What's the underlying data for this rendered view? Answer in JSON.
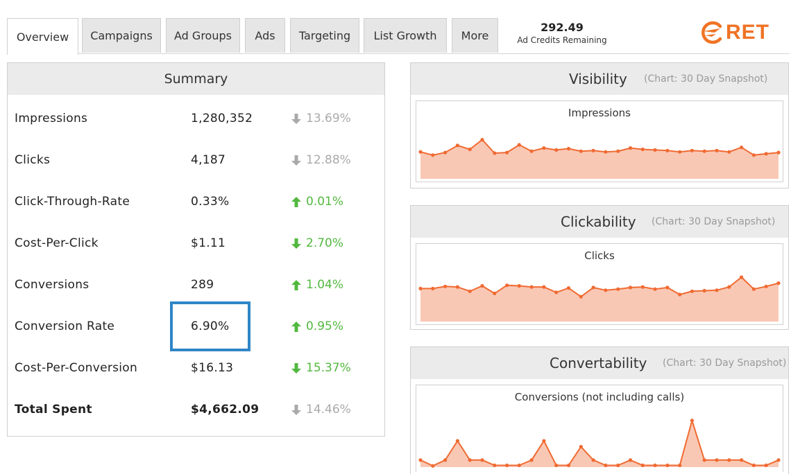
{
  "tabs": [
    {
      "label": "Overview",
      "active": true
    },
    {
      "label": "Campaigns"
    },
    {
      "label": "Ad Groups"
    },
    {
      "label": "Ads"
    },
    {
      "label": "Targeting"
    },
    {
      "label": "List Growth"
    },
    {
      "label": "More"
    }
  ],
  "credits": {
    "amount": "292.49",
    "label": "Ad Credits Remaining"
  },
  "logo": {
    "text": "RET",
    "color": "#f07325"
  },
  "summary": {
    "title": "Summary",
    "rows": [
      {
        "label": "Impressions",
        "value": "1,280,352",
        "change": "13.69%",
        "direction": "down",
        "color": "grey"
      },
      {
        "label": "Clicks",
        "value": "4,187",
        "change": "12.88%",
        "direction": "down",
        "color": "grey"
      },
      {
        "label": "Click-Through-Rate",
        "value": "0.33%",
        "change": "0.01%",
        "direction": "up",
        "color": "green"
      },
      {
        "label": "Cost-Per-Click",
        "value": "$1.11",
        "change": "2.70%",
        "direction": "down",
        "color": "green"
      },
      {
        "label": "Conversions",
        "value": "289",
        "change": "1.04%",
        "direction": "up",
        "color": "green"
      },
      {
        "label": "Conversion Rate",
        "value": "6.90%",
        "change": "0.95%",
        "direction": "up",
        "color": "green",
        "highlighted": true
      },
      {
        "label": "Cost-Per-Conversion",
        "value": "$16.13",
        "change": "15.37%",
        "direction": "down",
        "color": "green"
      },
      {
        "label": "Total Spent",
        "value": "$4,662.09",
        "change": "14.46%",
        "direction": "down",
        "color": "grey",
        "bold": true
      }
    ]
  },
  "colors": {
    "accent": "#f07325",
    "line": "#f06a32",
    "fill": "#f9c8b4",
    "green": "#52b83f",
    "grey": "#aaaaaa",
    "highlight": "#2f86c6"
  },
  "panels": [
    {
      "title": "Visibility",
      "subtitle": "(Chart: 30 Day Snapshot)",
      "chart_title": "Impressions"
    },
    {
      "title": "Clickability",
      "subtitle": "(Chart: 30 Day Snapshot)",
      "chart_title": "Clicks"
    },
    {
      "title": "Convertability",
      "subtitle": "(Chart: 30 Day Snapshot)",
      "chart_title": "Conversions (not including calls)"
    }
  ],
  "chart_data": [
    {
      "type": "area",
      "title": "Impressions",
      "xlabel": "",
      "ylabel": "",
      "series": [
        {
          "values": [
            42,
            37,
            41,
            52,
            46,
            61,
            40,
            41,
            53,
            43,
            48,
            45,
            47,
            43,
            44,
            42,
            43,
            48,
            46,
            45,
            44,
            42,
            44,
            43,
            44,
            42,
            49,
            37,
            39,
            41
          ]
        }
      ],
      "ylim": [
        0,
        80
      ]
    },
    {
      "type": "area",
      "title": "Clicks",
      "xlabel": "",
      "ylabel": "",
      "series": [
        {
          "values": [
            61,
            61,
            65,
            64,
            56,
            66,
            52,
            67,
            66,
            64,
            64,
            54,
            62,
            46,
            63,
            58,
            60,
            63,
            64,
            60,
            63,
            50,
            56,
            57,
            58,
            64,
            82,
            60,
            65,
            71
          ]
        }
      ],
      "ylim": [
        0,
        100
      ]
    },
    {
      "type": "area",
      "title": "Conversions (not including calls)",
      "xlabel": "",
      "ylabel": "",
      "series": [
        {
          "values": [
            1.2,
            0.2,
            1.2,
            4.5,
            1.2,
            1.2,
            0.3,
            0.3,
            0.3,
            1.2,
            4.5,
            0.3,
            0.3,
            3.5,
            1.2,
            0.3,
            0.3,
            1.2,
            0.3,
            0.3,
            0.3,
            0.3,
            8.0,
            1.2,
            1.2,
            1.2,
            1.2,
            0.3,
            0.3,
            1.2
          ]
        }
      ],
      "ylim": [
        0,
        10
      ]
    }
  ]
}
